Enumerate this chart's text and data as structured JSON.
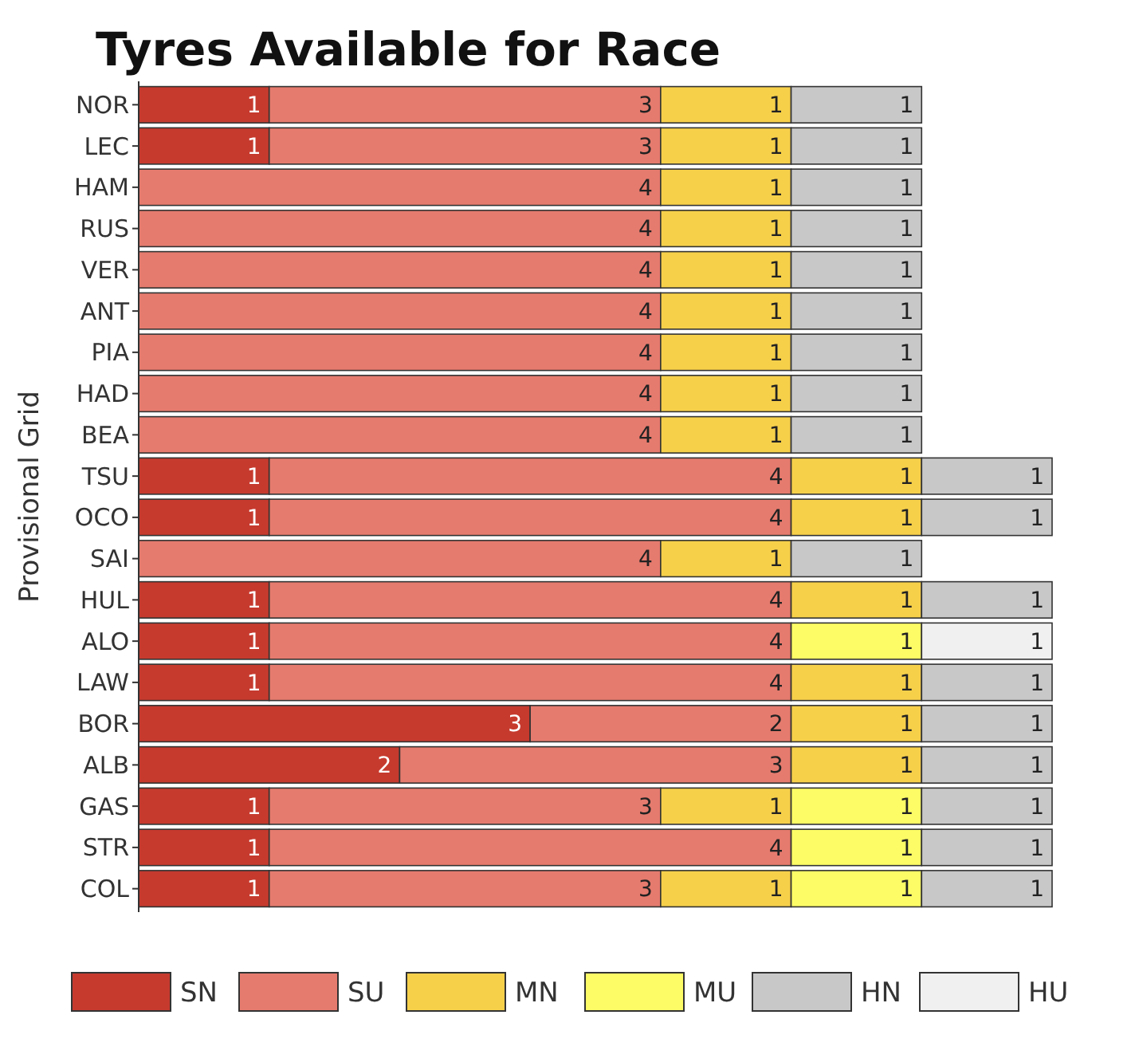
{
  "chart_data": {
    "type": "bar",
    "orientation": "horizontal",
    "stacked": true,
    "title": "Tyres Available for Race",
    "ylabel": "Provisional Grid",
    "categories": [
      "NOR",
      "LEC",
      "HAM",
      "RUS",
      "VER",
      "ANT",
      "PIA",
      "HAD",
      "BEA",
      "TSU",
      "OCO",
      "SAI",
      "HUL",
      "ALO",
      "LAW",
      "BOR",
      "ALB",
      "GAS",
      "STR",
      "COL"
    ],
    "series": [
      {
        "name": "SN",
        "color": "#c63a2e",
        "values": [
          1,
          1,
          null,
          null,
          null,
          null,
          null,
          null,
          null,
          1,
          1,
          null,
          1,
          1,
          1,
          3,
          2,
          1,
          1,
          1
        ]
      },
      {
        "name": "SU",
        "color": "#e57b6e",
        "values": [
          3,
          3,
          4,
          4,
          4,
          4,
          4,
          4,
          4,
          4,
          4,
          4,
          4,
          4,
          4,
          2,
          3,
          3,
          4,
          3
        ]
      },
      {
        "name": "MN",
        "color": "#f7d04a",
        "values": [
          1,
          1,
          1,
          1,
          1,
          1,
          1,
          1,
          1,
          1,
          1,
          1,
          1,
          null,
          1,
          1,
          1,
          1,
          null,
          1
        ]
      },
      {
        "name": "MU",
        "color": "#fdfc66",
        "values": [
          null,
          null,
          null,
          null,
          null,
          null,
          null,
          null,
          null,
          null,
          null,
          null,
          null,
          1,
          null,
          null,
          null,
          1,
          1,
          1
        ]
      },
      {
        "name": "HN",
        "color": "#c8c8c8",
        "values": [
          1,
          1,
          1,
          1,
          1,
          1,
          1,
          1,
          1,
          1,
          1,
          1,
          1,
          null,
          1,
          1,
          1,
          1,
          1,
          1
        ]
      },
      {
        "name": "HU",
        "color": "#f0f0f0",
        "values": [
          null,
          null,
          null,
          null,
          null,
          null,
          null,
          null,
          null,
          null,
          null,
          null,
          null,
          1,
          null,
          null,
          null,
          null,
          null,
          null
        ]
      }
    ],
    "data_labels": true,
    "legend": "bottom"
  }
}
